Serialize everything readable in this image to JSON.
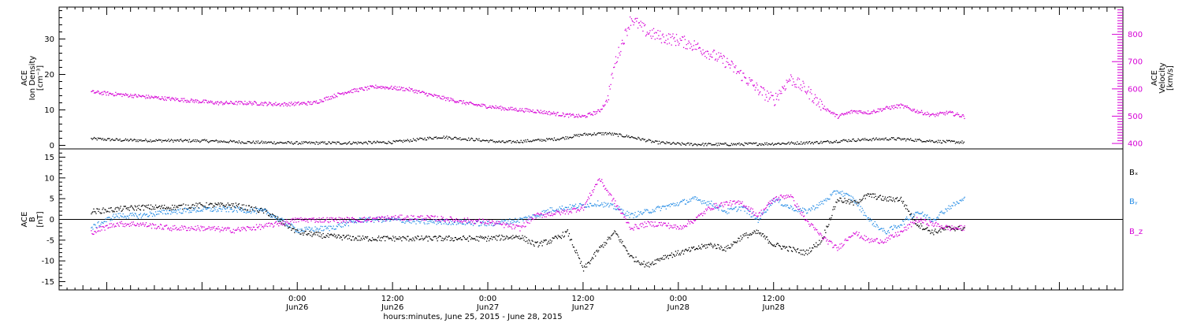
{
  "chart_data": [
    {
      "type": "scatter",
      "panel": "top",
      "ylabel_left": [
        "ACE",
        "Ion Density",
        "[cm⁻³]"
      ],
      "ylabel_right": [
        "ACE",
        "Velocity",
        "[km/s]"
      ],
      "ylim_left": [
        -1,
        39
      ],
      "ylim_right": [
        380,
        900
      ],
      "yticks_left": [
        "0",
        "10",
        "20",
        "30"
      ],
      "yticks_right": [
        "400",
        "500",
        "600",
        "700",
        "800"
      ],
      "colors": {
        "density": "#000000",
        "velocity": "#d600d6"
      },
      "series": [
        {
          "name": "Ion Density",
          "axis": "left",
          "color": "#000000",
          "x": [
            -26,
            -22,
            -18,
            -12,
            -6,
            0,
            6,
            12,
            18,
            22,
            26,
            30,
            33,
            36,
            39,
            42,
            45,
            48,
            51,
            54,
            57,
            60,
            63,
            66,
            69,
            72,
            75,
            78,
            81,
            84
          ],
          "y": [
            2,
            1.6,
            1.5,
            1.4,
            1.0,
            0.8,
            0.8,
            1.0,
            2.5,
            1.8,
            1.0,
            1.5,
            2.0,
            3.2,
            3.5,
            2.5,
            1.0,
            0.5,
            0.4,
            0.4,
            0.5,
            0.6,
            0.8,
            1.0,
            1.5,
            1.8,
            2.0,
            1.6,
            1.2,
            1.0
          ]
        },
        {
          "name": "Velocity",
          "axis": "right",
          "color": "#d600d6",
          "x": [
            -26,
            -22,
            -18,
            -14,
            -10,
            -6,
            -2,
            2,
            6,
            10,
            14,
            18,
            22,
            26,
            30,
            34,
            36,
            38,
            39,
            40,
            42,
            44,
            46,
            48,
            50,
            52,
            54,
            56,
            58,
            60,
            62,
            64,
            66,
            68,
            70,
            72,
            74,
            76,
            78,
            80,
            82,
            84
          ],
          "y": [
            590,
            580,
            570,
            560,
            550,
            550,
            545,
            550,
            590,
            610,
            600,
            570,
            545,
            530,
            520,
            505,
            500,
            520,
            560,
            700,
            860,
            810,
            790,
            780,
            760,
            730,
            700,
            650,
            600,
            560,
            640,
            600,
            540,
            500,
            520,
            515,
            530,
            540,
            520,
            505,
            515,
            500
          ]
        }
      ]
    },
    {
      "type": "scatter",
      "panel": "bottom",
      "ylabel": [
        "ACE",
        "B",
        "[nT]"
      ],
      "ylim": [
        -17,
        17
      ],
      "yticks": [
        "-15",
        "-10",
        "-5",
        "0",
        "5",
        "10",
        "15"
      ],
      "colors": {
        "Bx": "#000000",
        "By": "#2a8fe6",
        "Bz": "#d600d6"
      },
      "series": [
        {
          "name": "Bₓ",
          "color": "#000000",
          "x": [
            -26,
            -23,
            -20,
            -16,
            -12,
            -8,
            -4,
            0,
            4,
            8,
            12,
            16,
            20,
            24,
            28,
            30,
            32,
            34,
            36,
            38,
            40,
            42,
            44,
            46,
            48,
            50,
            52,
            54,
            56,
            58,
            60,
            62,
            64,
            66,
            68,
            70,
            72,
            74,
            76,
            78,
            80,
            82,
            84
          ],
          "y": [
            2,
            2.5,
            3,
            3,
            3.5,
            3.5,
            2,
            -3,
            -4,
            -4.5,
            -4.5,
            -4.5,
            -4.5,
            -4.5,
            -4,
            -6,
            -5,
            -3,
            -12,
            -7,
            -3,
            -9,
            -11,
            -9,
            -8,
            -7,
            -6,
            -7,
            -4,
            -3,
            -6,
            -7,
            -8,
            -5,
            5,
            4,
            6,
            5,
            5,
            -1,
            -3,
            -2,
            -2
          ]
        },
        {
          "name": "Bᵧ",
          "color": "#2a8fe6",
          "x": [
            -26,
            -23,
            -20,
            -16,
            -12,
            -8,
            -4,
            0,
            4,
            8,
            12,
            16,
            20,
            24,
            28,
            30,
            32,
            34,
            36,
            38,
            40,
            42,
            44,
            46,
            48,
            50,
            52,
            54,
            56,
            58,
            60,
            62,
            64,
            66,
            68,
            70,
            72,
            74,
            76,
            78,
            80,
            82,
            84
          ],
          "y": [
            -2,
            1,
            1,
            2,
            2.5,
            2.5,
            2,
            -2.5,
            -2,
            0,
            0,
            -0.5,
            -0.5,
            -1,
            0,
            1,
            2.5,
            3,
            3.5,
            4,
            3,
            1,
            2,
            3,
            4,
            5,
            4,
            2,
            3,
            0,
            5,
            3,
            2,
            4,
            7,
            5,
            0,
            -3,
            -1,
            2,
            0,
            3,
            5
          ]
        },
        {
          "name": "B_z",
          "color": "#d600d6",
          "x": [
            -26,
            -23,
            -20,
            -16,
            -12,
            -8,
            -4,
            0,
            4,
            8,
            12,
            16,
            20,
            24,
            28,
            30,
            32,
            34,
            36,
            38,
            40,
            42,
            44,
            46,
            48,
            50,
            52,
            54,
            56,
            58,
            60,
            62,
            64,
            66,
            68,
            70,
            72,
            74,
            76,
            78,
            80,
            82,
            84
          ],
          "y": [
            -3,
            -1,
            -1,
            -2,
            -2,
            -2.5,
            -1.5,
            0,
            0,
            0,
            0.5,
            0.5,
            0,
            -0.5,
            -2,
            1,
            1.5,
            2,
            3,
            10,
            4,
            -2,
            -1,
            -1,
            -2,
            0,
            3,
            4,
            4,
            1,
            5,
            6,
            0,
            -4,
            -7,
            -3,
            -5,
            -5,
            -3,
            0,
            -1,
            -2,
            -2
          ]
        }
      ],
      "legend_position": "right",
      "reference_line_y": 0
    }
  ],
  "x_axis": {
    "xlim": [
      -30,
      104
    ],
    "ticks": [
      {
        "x": 0,
        "time": "0:00",
        "date": "Jun26"
      },
      {
        "x": 12,
        "time": "12:00",
        "date": "Jun26"
      },
      {
        "x": 24,
        "time": "0:00",
        "date": "Jun27"
      },
      {
        "x": 36,
        "time": "12:00",
        "date": "Jun27"
      },
      {
        "x": 48,
        "time": "0:00",
        "date": "Jun28"
      },
      {
        "x": 60,
        "time": "12:00",
        "date": "Jun28"
      }
    ],
    "title": "hours:minutes, June 25, 2015 - June 28, 2015"
  }
}
